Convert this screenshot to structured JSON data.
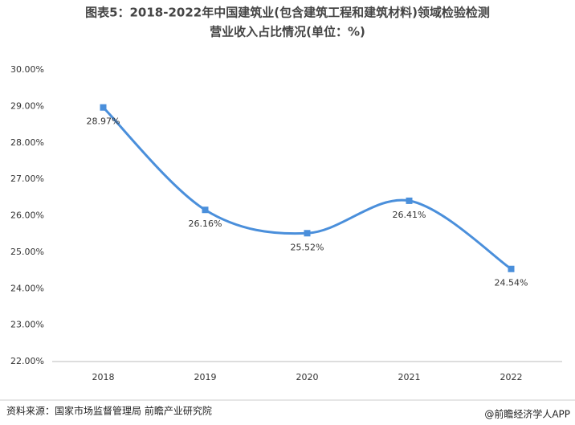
{
  "chart_data": {
    "type": "line",
    "title": [
      "图表5：2018-2022年中国建筑业(包含建筑工程和建筑材料)领域检验检测",
      "营业收入占比情况(单位：%)"
    ],
    "categories": [
      "2018",
      "2019",
      "2020",
      "2021",
      "2022"
    ],
    "values": [
      28.97,
      26.16,
      25.52,
      26.41,
      24.54
    ],
    "value_labels": [
      "28.97%",
      "26.16%",
      "25.52%",
      "26.41%",
      "24.54%"
    ],
    "color": "#4a8fdb",
    "ylim": [
      22,
      30
    ],
    "yticks": [
      {
        "value": 22,
        "label": "22.00%"
      },
      {
        "value": 23,
        "label": "23.00%"
      },
      {
        "value": 24,
        "label": "24.00%"
      },
      {
        "value": 25,
        "label": "25.00%"
      },
      {
        "value": 26,
        "label": "26.00%"
      },
      {
        "value": 27,
        "label": "27.00%"
      },
      {
        "value": 28,
        "label": "28.00%"
      },
      {
        "value": 29,
        "label": "29.00%"
      },
      {
        "value": 30,
        "label": "30.00%"
      }
    ],
    "grid": false,
    "source": "资料来源：国家市场监督管理局 前瞻产业研究院",
    "credit": "@前瞻经济学人APP"
  }
}
